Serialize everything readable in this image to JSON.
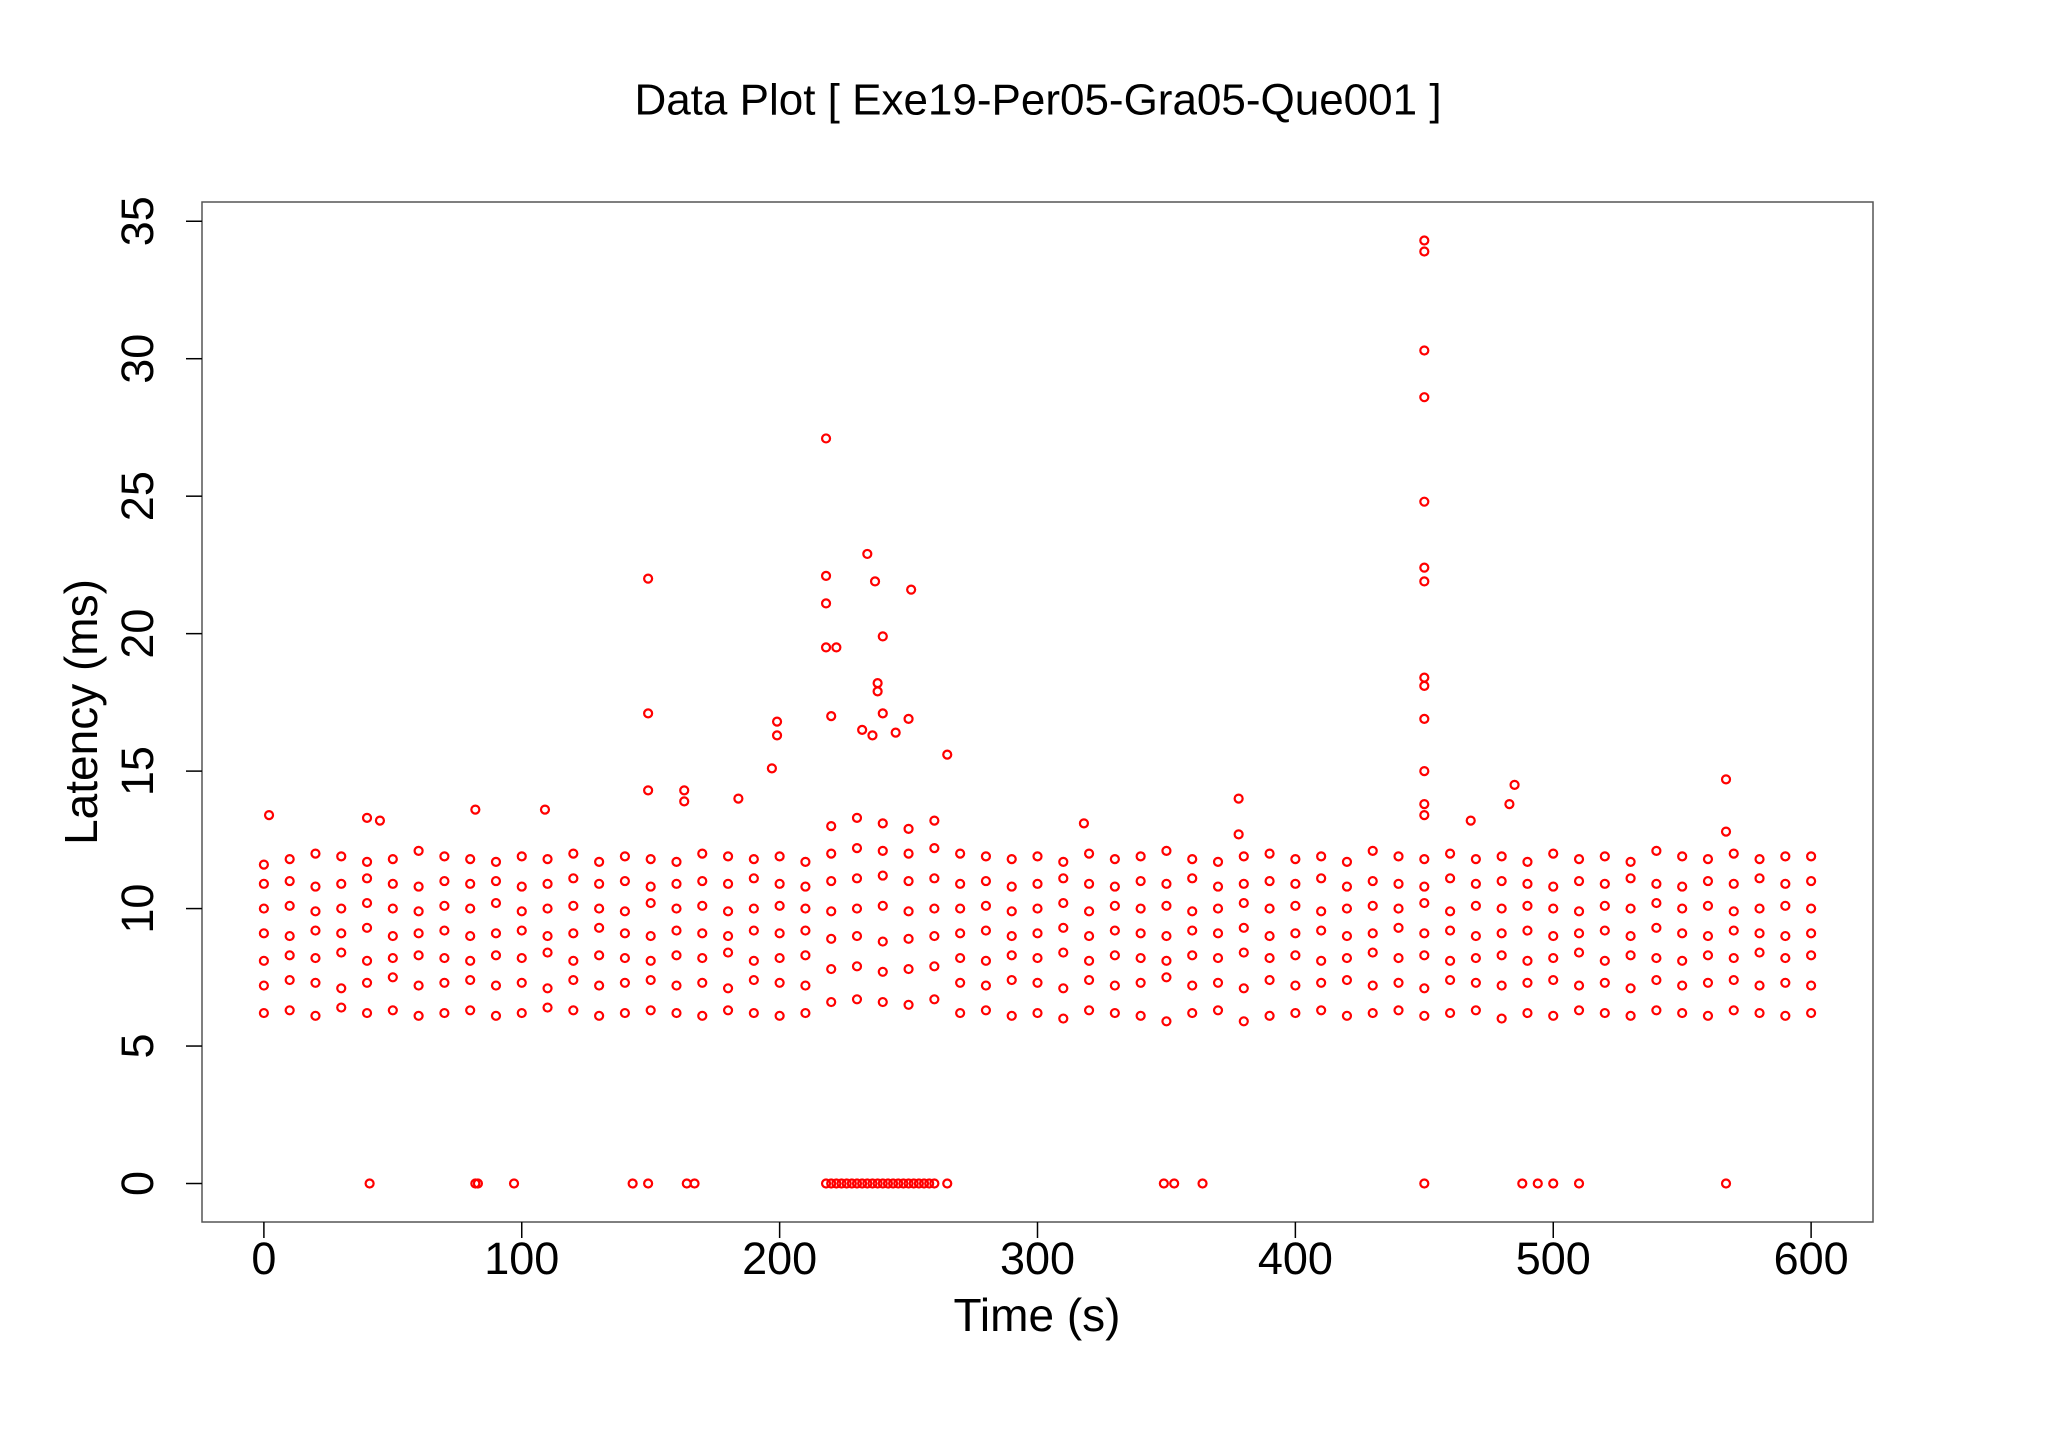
{
  "chart_data": {
    "type": "scatter",
    "title": "Data Plot [ Exe19-Per05-Gra05-Que001 ]",
    "x_label": "Time (s)",
    "y_label": "Latency (ms)",
    "color": "#ff0000",
    "xlim": [
      -24,
      624
    ],
    "ylim": [
      -1.4,
      35.7
    ],
    "xticks": [
      0,
      100,
      200,
      300,
      400,
      500,
      600
    ],
    "yticks": [
      0,
      5,
      10,
      15,
      20,
      25,
      30,
      35
    ],
    "x": [
      0,
      10,
      20,
      30,
      40,
      50,
      60,
      70,
      80,
      90,
      100,
      110,
      120,
      130,
      140,
      150,
      160,
      170,
      180,
      190,
      200,
      210,
      220,
      230,
      240,
      250,
      260,
      270,
      280,
      290,
      300,
      310,
      320,
      330,
      340,
      350,
      360,
      370,
      380,
      390,
      400,
      410,
      420,
      430,
      440,
      450,
      460,
      470,
      480,
      490,
      500,
      510,
      520,
      530,
      540,
      550,
      560,
      570,
      580,
      590,
      600
    ],
    "series": [
      {
        "values": [
          6.2,
          6.3,
          6.1,
          6.4,
          6.2,
          6.3,
          6.1,
          6.2,
          6.3,
          6.1,
          6.2,
          6.4,
          6.3,
          6.1,
          6.2,
          6.3,
          6.2,
          6.1,
          6.3,
          6.2,
          6.1,
          6.2,
          6.6,
          6.7,
          6.6,
          6.5,
          6.7,
          6.2,
          6.3,
          6.1,
          6.2,
          6.0,
          6.3,
          6.2,
          6.1,
          5.9,
          6.2,
          6.3,
          5.9,
          6.1,
          6.2,
          6.3,
          6.1,
          6.2,
          6.3,
          6.1,
          6.2,
          6.3,
          6.0,
          6.2,
          6.1,
          6.3,
          6.2,
          6.1,
          6.3,
          6.2,
          6.1,
          6.3,
          6.2,
          6.1,
          6.2
        ]
      },
      {
        "values": [
          7.2,
          7.4,
          7.3,
          7.1,
          7.3,
          7.5,
          7.2,
          7.3,
          7.4,
          7.2,
          7.3,
          7.1,
          7.4,
          7.2,
          7.3,
          7.4,
          7.2,
          7.3,
          7.1,
          7.4,
          7.3,
          7.2,
          7.8,
          7.9,
          7.7,
          7.8,
          7.9,
          7.3,
          7.2,
          7.4,
          7.3,
          7.1,
          7.4,
          7.2,
          7.3,
          7.5,
          7.2,
          7.3,
          7.1,
          7.4,
          7.2,
          7.3,
          7.4,
          7.2,
          7.3,
          7.1,
          7.4,
          7.3,
          7.2,
          7.3,
          7.4,
          7.2,
          7.3,
          7.1,
          7.4,
          7.2,
          7.3,
          7.4,
          7.2,
          7.3,
          7.2
        ]
      },
      {
        "values": [
          8.1,
          8.3,
          8.2,
          8.4,
          8.1,
          8.2,
          8.3,
          8.2,
          8.1,
          8.3,
          8.2,
          8.4,
          8.1,
          8.3,
          8.2,
          8.1,
          8.3,
          8.2,
          8.4,
          8.1,
          8.2,
          8.3,
          8.9,
          9.0,
          8.8,
          8.9,
          9.0,
          8.2,
          8.1,
          8.3,
          8.2,
          8.4,
          8.1,
          8.3,
          8.2,
          8.1,
          8.3,
          8.2,
          8.4,
          8.2,
          8.3,
          8.1,
          8.2,
          8.4,
          8.2,
          8.3,
          8.1,
          8.2,
          8.3,
          8.1,
          8.2,
          8.4,
          8.1,
          8.3,
          8.2,
          8.1,
          8.3,
          8.2,
          8.4,
          8.2,
          8.3
        ]
      },
      {
        "values": [
          9.1,
          9.0,
          9.2,
          9.1,
          9.3,
          9.0,
          9.1,
          9.2,
          9.0,
          9.1,
          9.2,
          9.0,
          9.1,
          9.3,
          9.1,
          9.0,
          9.2,
          9.1,
          9.0,
          9.2,
          9.1,
          9.2,
          9.9,
          10.0,
          10.1,
          9.9,
          10.0,
          9.1,
          9.2,
          9.0,
          9.1,
          9.3,
          9.0,
          9.2,
          9.1,
          9.0,
          9.2,
          9.1,
          9.3,
          9.0,
          9.1,
          9.2,
          9.0,
          9.1,
          9.3,
          9.1,
          9.2,
          9.0,
          9.1,
          9.2,
          9.0,
          9.1,
          9.2,
          9.0,
          9.3,
          9.1,
          9.0,
          9.2,
          9.1,
          9.0,
          9.1
        ]
      },
      {
        "values": [
          10.0,
          10.1,
          9.9,
          10.0,
          10.2,
          10.0,
          9.9,
          10.1,
          10.0,
          10.2,
          9.9,
          10.0,
          10.1,
          10.0,
          9.9,
          10.2,
          10.0,
          10.1,
          9.9,
          10.0,
          10.1,
          10.0,
          11.0,
          11.1,
          11.2,
          11.0,
          11.1,
          10.0,
          10.1,
          9.9,
          10.0,
          10.2,
          9.9,
          10.1,
          10.0,
          10.1,
          9.9,
          10.0,
          10.2,
          10.0,
          10.1,
          9.9,
          10.0,
          10.1,
          10.0,
          10.2,
          9.9,
          10.1,
          10.0,
          10.1,
          10.0,
          9.9,
          10.1,
          10.0,
          10.2,
          10.0,
          10.1,
          9.9,
          10.0,
          10.1,
          10.0
        ]
      },
      {
        "values": [
          10.9,
          11.0,
          10.8,
          10.9,
          11.1,
          10.9,
          10.8,
          11.0,
          10.9,
          11.0,
          10.8,
          10.9,
          11.1,
          10.9,
          11.0,
          10.8,
          10.9,
          11.0,
          10.9,
          11.1,
          10.9,
          10.8,
          12.0,
          12.2,
          12.1,
          12.0,
          12.2,
          10.9,
          11.0,
          10.8,
          10.9,
          11.1,
          10.9,
          10.8,
          11.0,
          10.9,
          11.1,
          10.8,
          10.9,
          11.0,
          10.9,
          11.1,
          10.8,
          11.0,
          10.9,
          10.8,
          11.1,
          10.9,
          11.0,
          10.9,
          10.8,
          11.0,
          10.9,
          11.1,
          10.9,
          10.8,
          11.0,
          10.9,
          11.1,
          10.9,
          11.0
        ]
      },
      {
        "values": [
          11.6,
          11.8,
          12.0,
          11.9,
          11.7,
          11.8,
          12.1,
          11.9,
          11.8,
          11.7,
          11.9,
          11.8,
          12.0,
          11.7,
          11.9,
          11.8,
          11.7,
          12.0,
          11.9,
          11.8,
          11.9,
          11.7,
          13.0,
          13.3,
          13.1,
          12.9,
          13.2,
          12.0,
          11.9,
          11.8,
          11.9,
          11.7,
          12.0,
          11.8,
          11.9,
          12.1,
          11.8,
          11.7,
          11.9,
          12.0,
          11.8,
          11.9,
          11.7,
          12.1,
          11.9,
          11.8,
          12.0,
          11.8,
          11.9,
          11.7,
          12.0,
          11.8,
          11.9,
          11.7,
          12.1,
          11.9,
          11.8,
          12.0,
          11.8,
          11.9,
          11.9
        ]
      },
      {
        "x": [
          2,
          40,
          45,
          82,
          109,
          149,
          149,
          149,
          163,
          163,
          184,
          199,
          199,
          197,
          218,
          218,
          218,
          218,
          222,
          234,
          237,
          240,
          238,
          238,
          251,
          250,
          240,
          232,
          236,
          220,
          245,
          265,
          318,
          378,
          450,
          450,
          450,
          450,
          450,
          450,
          450,
          450,
          450,
          450,
          450,
          450,
          450,
          485,
          483,
          468,
          567,
          567,
          378,
          41,
          82,
          83,
          97,
          143,
          149,
          164,
          167,
          218,
          220,
          222,
          224,
          226,
          228,
          230,
          232,
          234,
          236,
          238,
          240,
          242,
          244,
          246,
          248,
          250,
          252,
          254,
          256,
          258,
          260,
          265,
          349,
          353,
          364,
          450,
          488,
          494,
          500,
          510,
          567
        ],
        "values": [
          13.4,
          13.3,
          13.2,
          13.6,
          13.6,
          22,
          17.1,
          14.3,
          14.3,
          13.9,
          14,
          16.8,
          16.3,
          15.1,
          27.1,
          22.1,
          21.1,
          19.5,
          19.5,
          22.9,
          21.9,
          19.9,
          18.2,
          17.9,
          21.6,
          16.9,
          17.1,
          16.5,
          16.3,
          17,
          16.4,
          15.6,
          13.1,
          14,
          34.3,
          33.9,
          30.3,
          28.6,
          24.8,
          22.4,
          21.9,
          18.4,
          18.1,
          16.9,
          15,
          13.8,
          13.4,
          14.5,
          13.8,
          13.2,
          14.7,
          12.8,
          12.7,
          0,
          0,
          0,
          0,
          0,
          0,
          0,
          0,
          0,
          0,
          0,
          0,
          0,
          0,
          0,
          0,
          0,
          0,
          0,
          0,
          0,
          0,
          0,
          0,
          0,
          0,
          0,
          0,
          0,
          0,
          0,
          0,
          0,
          0,
          0,
          0,
          0,
          0,
          0,
          0
        ]
      }
    ]
  }
}
